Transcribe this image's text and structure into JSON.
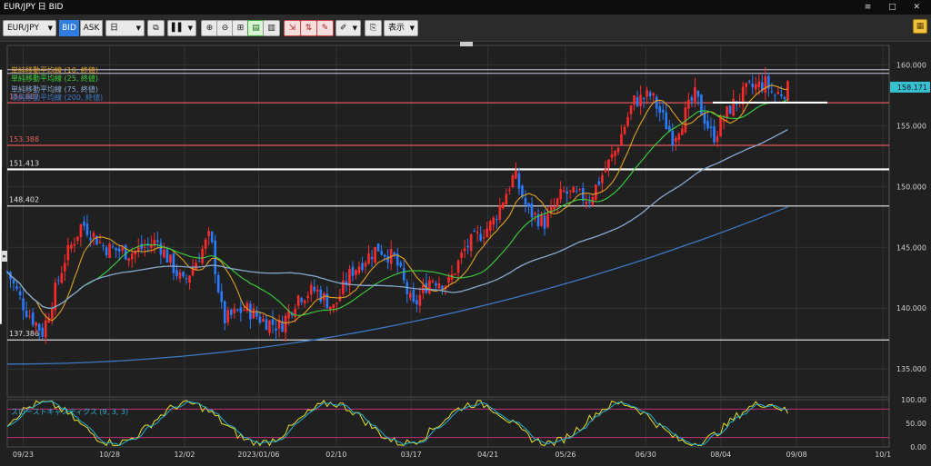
{
  "window": {
    "title": "EUR/JPY 日 BID",
    "controls": "≡ □ ✕"
  },
  "toolbar": {
    "symbol": "EUR/JPY",
    "bid_label": "BID",
    "ask_label": "ASK",
    "period": "日",
    "display_label": "表示",
    "icons": [
      "compare-icon",
      "chart-type-icon",
      "zoom-in-icon",
      "zoom-out-icon",
      "fit-icon",
      "scroll-left-icon",
      "scroll-right-icon",
      "order-icon",
      "trade-icon",
      "alert-icon",
      "draw-icon",
      "save-icon",
      "settings-icon"
    ]
  },
  "legend": {
    "ma10": "単純移動平均線 (10, 終値)",
    "ma25": "単純移動平均線 (25, 終値)",
    "ma75": "単純移動平均線 (75, 終値)",
    "ma200": "単純移動平均線 (200, 終値)",
    "stoch": "スローストキャスティクス (9, 3, 3)"
  },
  "colors": {
    "bg": "#202020",
    "grid": "#3a3a3a",
    "up": "#ff2a2a",
    "down": "#2a7bff",
    "ma10": "#e0a020",
    "ma25": "#3cd03c",
    "ma75": "#87a8cf",
    "ma200": "#3d78c4",
    "stoch_k": "#e8e020",
    "stoch_d": "#22b0d0",
    "current": "#36c0d0"
  },
  "price_axis": {
    "ticks": [
      "160.000",
      "155.000",
      "150.000",
      "145.000",
      "140.000",
      "135.000"
    ],
    "current": "158.171"
  },
  "stoch_axis": {
    "ticks": [
      "100.00",
      "50.00",
      "0.00"
    ]
  },
  "levels": [
    {
      "value": "156.887",
      "color": "#e05a5a"
    },
    {
      "value": "153.388",
      "color": "#e05a5a"
    },
    {
      "value": "151.413",
      "color": "#ffffff"
    },
    {
      "value": "148.402",
      "color": "#d8d8d8"
    },
    {
      "value": "137.386",
      "color": "#d8d8d8"
    }
  ],
  "date_axis": [
    "09/23",
    "10/28",
    "12/02",
    "2023/01/06",
    "02/10",
    "03/17",
    "04/21",
    "05/26",
    "06/30",
    "08/04",
    "09/08",
    "10/1"
  ]
}
